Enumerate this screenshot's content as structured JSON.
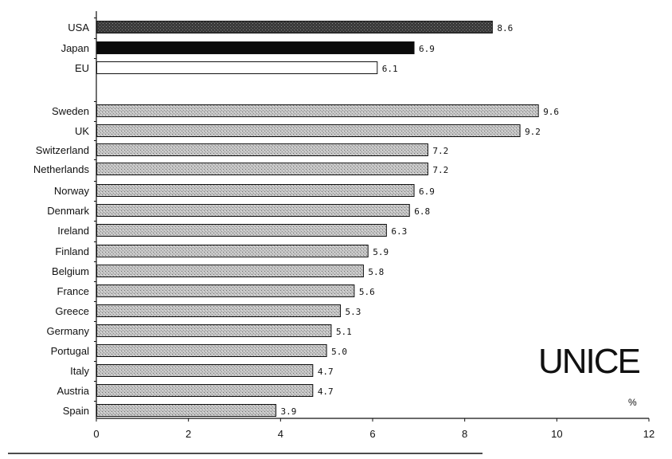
{
  "chart_data": {
    "type": "bar",
    "orientation": "horizontal",
    "categories": [
      "USA",
      "Japan",
      "EU",
      "Sweden",
      "UK",
      "Switzerland",
      "Netherlands",
      "Norway",
      "Denmark",
      "Ireland",
      "Finland",
      "Belgium",
      "France",
      "Greece",
      "Germany",
      "Portugal",
      "Italy",
      "Austria",
      "Spain"
    ],
    "values": [
      8.6,
      6.9,
      6.1,
      9.6,
      9.2,
      7.2,
      7.2,
      6.9,
      6.8,
      6.3,
      5.9,
      5.8,
      5.6,
      5.3,
      5.1,
      5.0,
      4.7,
      4.7,
      3.9
    ],
    "value_labels": [
      "8.6",
      "6.9",
      "6.1",
      "9.6",
      "9.2",
      "7.2",
      "7.2",
      "6.9",
      "6.8",
      "6.3",
      "5.9",
      "5.8",
      "5.6",
      "5.3",
      "5.1",
      "5.0",
      "4.7",
      "4.7",
      "3.9"
    ],
    "bar_styles": [
      "dark",
      "black",
      "white",
      "grey",
      "grey",
      "grey",
      "grey",
      "grey",
      "grey",
      "grey",
      "grey",
      "grey",
      "grey",
      "grey",
      "grey",
      "grey",
      "grey",
      "grey",
      "grey"
    ],
    "xlim": [
      0,
      12
    ],
    "xticks": [
      "0",
      "2",
      "4",
      "6",
      "8",
      "10",
      "12"
    ],
    "unit": "%",
    "title": "",
    "xlabel": "",
    "ylabel": "",
    "grid": false,
    "legend": "none",
    "colors": {
      "dark": "#3a3a3a",
      "black": "#0a0a0a",
      "white": "#ffffff",
      "grey": "#b8b8b8",
      "axis": "#111111"
    }
  },
  "brand": "UNICE"
}
